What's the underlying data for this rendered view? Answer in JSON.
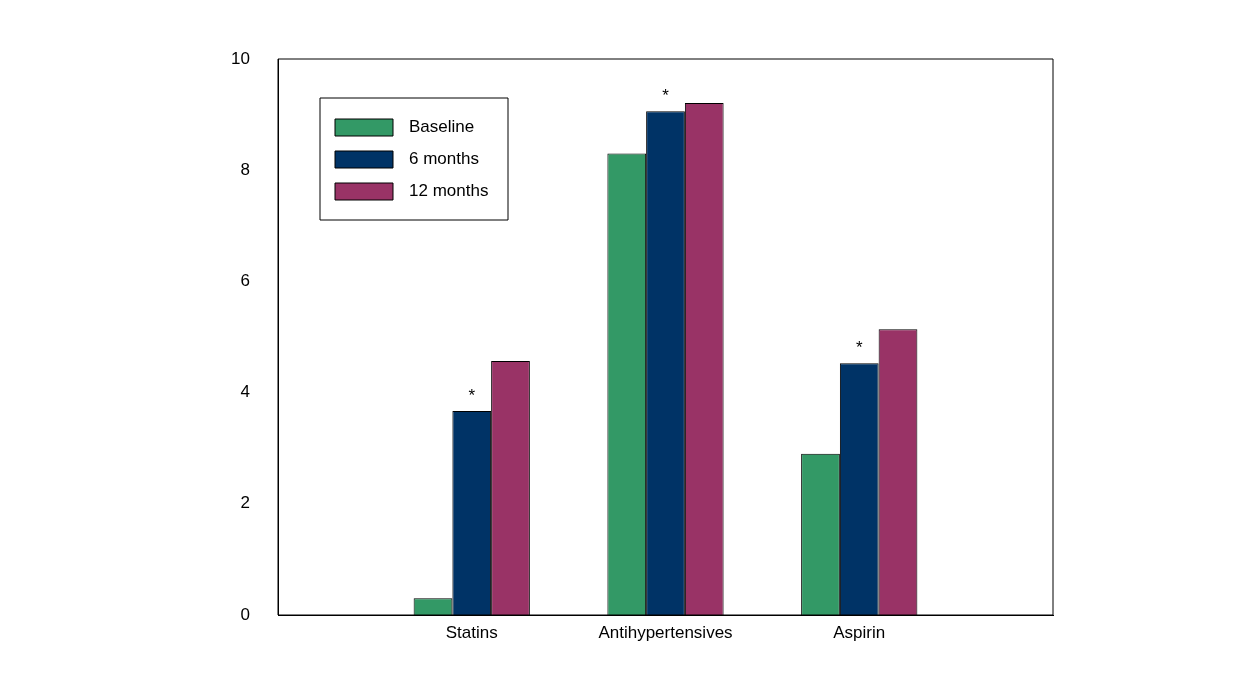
{
  "chart_data": {
    "type": "bar",
    "categories": [
      null,
      "Statins",
      "Antihypertensives",
      "Aspirin",
      null
    ],
    "series": [
      {
        "name": "Baseline",
        "color": "#339966",
        "values": [
          null,
          0.3,
          8.3,
          2.9,
          null
        ]
      },
      {
        "name": "6 months",
        "color": "#003366",
        "values": [
          null,
          3.67,
          9.06,
          4.53,
          null
        ],
        "value_labels": [
          null,
          "*",
          "*",
          "*",
          null
        ]
      },
      {
        "name": "12 months",
        "color": "#993366",
        "values": [
          null,
          4.57,
          9.21,
          5.14,
          null
        ]
      }
    ],
    "ylim": [
      0,
      10
    ],
    "yticks": [
      0,
      2,
      4,
      6,
      8,
      10
    ],
    "grid": false,
    "legend": "top left"
  }
}
